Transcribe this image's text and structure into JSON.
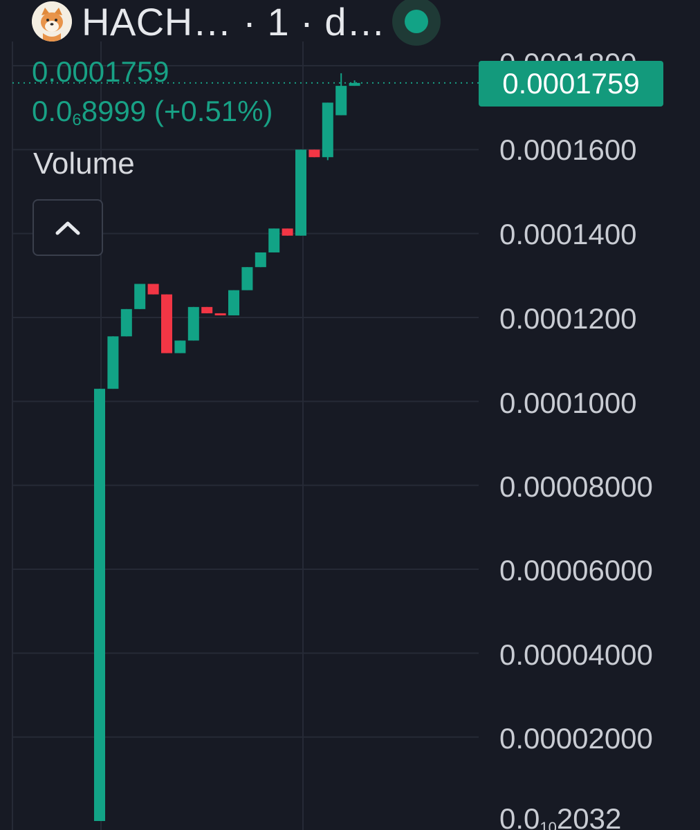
{
  "header": {
    "symbol": "HACH…",
    "interval": " · 1 · d…",
    "logo_icon": "shiba-dog-logo-icon",
    "status_icon": "live-status-dot-icon"
  },
  "price": {
    "last": "0.0001759",
    "change_prefix": "0.0",
    "change_subscript": "6",
    "change_rest": "8999 (+0.51%)"
  },
  "volume": {
    "label": "Volume",
    "toggle_icon": "chevron-up-icon"
  },
  "axis": {
    "top_partial": "0.0001800",
    "labels": [
      "0.0001600",
      "0.0001400",
      "0.0001200",
      "0.0001000",
      "0.00008000",
      "0.00006000",
      "0.00004000",
      "0.00002000"
    ],
    "bottom_prefix": "0.0",
    "bottom_subscript": "10",
    "bottom_rest": "2032",
    "last_price_tag": "0.0001759"
  },
  "colors": {
    "background": "#171a24",
    "up": "#12a386",
    "down": "#f23645",
    "tag": "#139a7c",
    "grid": "#262a36"
  },
  "chart_data": {
    "type": "candlestick",
    "y_axis_ticks": [
      2e-05,
      4e-05,
      6e-05,
      8e-05,
      0.0001,
      0.00012,
      0.00014,
      0.00016,
      0.00018
    ],
    "ylim": [
      2.032e-10,
      0.00018
    ],
    "last_price": 0.0001759,
    "candles": [
      {
        "open": 2.032e-10,
        "high": 0.000103,
        "low": 2.032e-10,
        "close": 0.000103
      },
      {
        "open": 0.000103,
        "high": 0.0001155,
        "low": 0.000103,
        "close": 0.0001155
      },
      {
        "open": 0.0001155,
        "high": 0.000122,
        "low": 0.0001155,
        "close": 0.000122
      },
      {
        "open": 0.000122,
        "high": 0.000128,
        "low": 0.000122,
        "close": 0.000128
      },
      {
        "open": 0.000128,
        "high": 0.000128,
        "low": 0.0001255,
        "close": 0.0001255
      },
      {
        "open": 0.0001255,
        "high": 0.0001255,
        "low": 0.0001115,
        "close": 0.0001115
      },
      {
        "open": 0.0001115,
        "high": 0.0001145,
        "low": 0.0001115,
        "close": 0.0001145
      },
      {
        "open": 0.0001145,
        "high": 0.0001225,
        "low": 0.0001145,
        "close": 0.0001225
      },
      {
        "open": 0.0001225,
        "high": 0.0001225,
        "low": 0.000121,
        "close": 0.000121
      },
      {
        "open": 0.000121,
        "high": 0.000121,
        "low": 0.0001205,
        "close": 0.0001205
      },
      {
        "open": 0.0001205,
        "high": 0.0001265,
        "low": 0.0001205,
        "close": 0.0001265
      },
      {
        "open": 0.0001265,
        "high": 0.000132,
        "low": 0.0001265,
        "close": 0.000132
      },
      {
        "open": 0.000132,
        "high": 0.0001355,
        "low": 0.000132,
        "close": 0.0001355
      },
      {
        "open": 0.0001355,
        "high": 0.0001412,
        "low": 0.0001355,
        "close": 0.0001412
      },
      {
        "open": 0.0001412,
        "high": 0.0001412,
        "low": 0.0001395,
        "close": 0.0001395
      },
      {
        "open": 0.0001395,
        "high": 0.00016,
        "low": 0.0001395,
        "close": 0.00016
      },
      {
        "open": 0.00016,
        "high": 0.00016,
        "low": 0.0001582,
        "close": 0.0001582
      },
      {
        "open": 0.0001582,
        "high": 0.0001712,
        "low": 0.0001575,
        "close": 0.0001712
      },
      {
        "open": 0.0001682,
        "high": 0.0001782,
        "low": 0.0001682,
        "close": 0.0001752
      },
      {
        "open": 0.0001752,
        "high": 0.0001765,
        "low": 0.0001752,
        "close": 0.0001759
      }
    ]
  }
}
